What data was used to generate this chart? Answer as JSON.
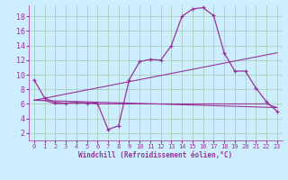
{
  "xlabel": "Windchill (Refroidissement éolien,°C)",
  "bg_color": "#cceeff",
  "grid_color": "#aaccbb",
  "line_color": "#993399",
  "xlim": [
    -0.5,
    23.5
  ],
  "ylim": [
    1,
    19.5
  ],
  "yticks": [
    2,
    4,
    6,
    8,
    10,
    12,
    14,
    16,
    18
  ],
  "xticks": [
    0,
    1,
    2,
    3,
    4,
    5,
    6,
    7,
    8,
    9,
    10,
    11,
    12,
    13,
    14,
    15,
    16,
    17,
    18,
    19,
    20,
    21,
    22,
    23
  ],
  "curve1_x": [
    0,
    1,
    2,
    3,
    4,
    5,
    6,
    7,
    8,
    9,
    10,
    11,
    12,
    13,
    14,
    15,
    16,
    17,
    18,
    19,
    20,
    21,
    22,
    23
  ],
  "curve1_y": [
    9.3,
    6.8,
    6.2,
    6.1,
    6.2,
    6.1,
    6.1,
    2.5,
    3.0,
    9.3,
    11.8,
    12.1,
    12.0,
    14.0,
    18.0,
    19.0,
    19.2,
    18.1,
    13.0,
    10.5,
    10.5,
    8.2,
    6.3,
    5.0
  ],
  "curve2_x": [
    0,
    1,
    2,
    3,
    4,
    5,
    6,
    7,
    8,
    9,
    10,
    11,
    12,
    13,
    14,
    15,
    16,
    17,
    18,
    19,
    20,
    21,
    22,
    23
  ],
  "curve2_y": [
    6.5,
    6.5,
    6.0,
    6.1,
    6.1,
    6.1,
    6.0,
    6.0,
    6.0,
    6.0,
    6.0,
    6.0,
    6.0,
    6.0,
    6.0,
    6.0,
    6.0,
    6.0,
    6.0,
    6.0,
    6.0,
    6.0,
    6.0,
    5.5
  ],
  "line1_x": [
    0,
    23
  ],
  "line1_y": [
    6.5,
    5.5
  ],
  "line2_x": [
    0,
    23
  ],
  "line2_y": [
    6.5,
    13.0
  ]
}
